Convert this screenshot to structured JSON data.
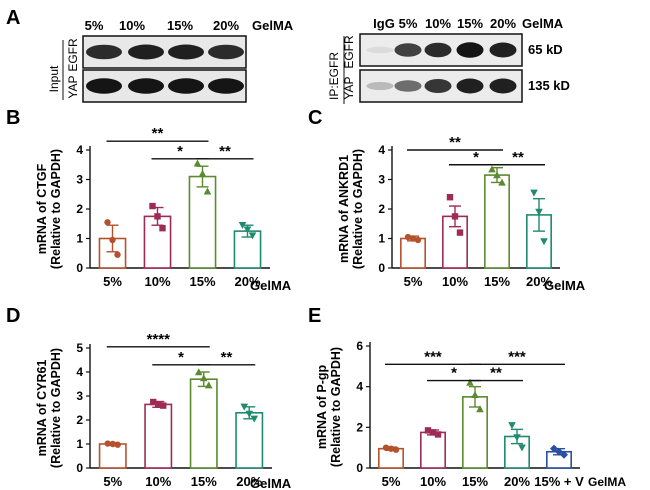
{
  "panel_a": {
    "letter": "A",
    "left_blot": {
      "lanes": [
        "5%",
        "10%",
        "15%",
        "20%"
      ],
      "lane_axis_label": "GelMA",
      "group_label": "Input",
      "rows": [
        {
          "label": "EGFR",
          "band_intensities": [
            0.85,
            0.9,
            0.9,
            0.85
          ]
        },
        {
          "label": "YAP",
          "band_intensities": [
            0.95,
            0.95,
            0.95,
            0.95
          ]
        }
      ]
    },
    "right_blot": {
      "lanes": [
        "IgG",
        "5%",
        "10%",
        "15%",
        "20%"
      ],
      "lane_axis_label": "GelMA",
      "group_label": "IP:EGFR",
      "rows": [
        {
          "label": "EGFR",
          "size": "65 kD",
          "band_intensities": [
            0.05,
            0.75,
            0.85,
            0.95,
            0.9
          ]
        },
        {
          "label": "YAP",
          "size": "135 kD",
          "band_intensities": [
            0.2,
            0.55,
            0.8,
            0.9,
            0.9
          ]
        }
      ]
    }
  },
  "chart_data": [
    {
      "panel": "B",
      "type": "bar",
      "ylabel_line1": "mRNA of CTGF",
      "ylabel_line2": "(Relative to GAPDH)",
      "xlabel": "GelMA",
      "categories": [
        "5%",
        "10%",
        "15%",
        "20%"
      ],
      "values": [
        1.0,
        1.75,
        3.1,
        1.25
      ],
      "errors": [
        0.45,
        0.3,
        0.35,
        0.2
      ],
      "points": [
        [
          1.55,
          0.95,
          0.45
        ],
        [
          2.1,
          1.75,
          1.35
        ],
        [
          3.55,
          3.2,
          2.6
        ],
        [
          1.45,
          1.3,
          1.1
        ]
      ],
      "colors": [
        "#b5522d",
        "#9e2b56",
        "#5b8a2f",
        "#1f8a70"
      ],
      "markers": [
        "circle",
        "square",
        "triangle",
        "triangle-down"
      ],
      "ylim": [
        0,
        4
      ],
      "yticks": [
        0,
        1,
        2,
        3,
        4
      ],
      "significance": [
        {
          "from": 0,
          "to": 2,
          "label": "**",
          "y": 4.3
        },
        {
          "from": 1,
          "to": 2,
          "label": "*",
          "y": 3.7
        },
        {
          "from": 2,
          "to": 3,
          "label": "**",
          "y": 3.7
        }
      ]
    },
    {
      "panel": "C",
      "type": "bar",
      "ylabel_line1": "mRNA of ANKRD1",
      "ylabel_line2": "(Relative to GAPDH)",
      "xlabel": "GelMA",
      "categories": [
        "5%",
        "10%",
        "15%",
        "20%"
      ],
      "values": [
        1.0,
        1.75,
        3.15,
        1.8
      ],
      "errors": [
        0.08,
        0.35,
        0.25,
        0.55
      ],
      "points": [
        [
          1.05,
          1.0,
          0.95
        ],
        [
          2.4,
          1.75,
          1.2
        ],
        [
          3.35,
          3.15,
          2.9
        ],
        [
          2.55,
          1.9,
          0.9
        ]
      ],
      "colors": [
        "#b5522d",
        "#9e2b56",
        "#5b8a2f",
        "#1f8a70"
      ],
      "markers": [
        "circle",
        "square",
        "triangle",
        "triangle-down"
      ],
      "ylim": [
        0,
        4
      ],
      "yticks": [
        0,
        1,
        2,
        3,
        4
      ],
      "significance": [
        {
          "from": 0,
          "to": 2,
          "label": "**",
          "y": 4.0
        },
        {
          "from": 1,
          "to": 2,
          "label": "*",
          "y": 3.5
        },
        {
          "from": 2,
          "to": 3,
          "label": "**",
          "y": 3.5
        }
      ]
    },
    {
      "panel": "D",
      "type": "bar",
      "ylabel_line1": "mRNA of CYR61",
      "ylabel_line2": "(Relative to GAPDH)",
      "xlabel": "GelMA",
      "categories": [
        "5%",
        "10%",
        "15%",
        "20%"
      ],
      "values": [
        1.0,
        2.65,
        3.7,
        2.3
      ],
      "errors": [
        0.05,
        0.12,
        0.3,
        0.25
      ],
      "points": [
        [
          1.02,
          1.0,
          0.97
        ],
        [
          2.75,
          2.65,
          2.6
        ],
        [
          4.0,
          3.75,
          3.45
        ],
        [
          2.55,
          2.25,
          2.05
        ]
      ],
      "colors": [
        "#b5522d",
        "#9e2b56",
        "#5b8a2f",
        "#1f8a70"
      ],
      "markers": [
        "circle",
        "square",
        "triangle",
        "triangle-down"
      ],
      "ylim": [
        0,
        5
      ],
      "yticks": [
        0,
        1,
        2,
        3,
        4,
        5
      ],
      "significance": [
        {
          "from": 0,
          "to": 2,
          "label": "****",
          "y": 5.05
        },
        {
          "from": 1,
          "to": 2,
          "label": "*",
          "y": 4.3
        },
        {
          "from": 2,
          "to": 3,
          "label": "**",
          "y": 4.3
        }
      ]
    },
    {
      "panel": "E",
      "type": "bar",
      "ylabel_line1": "mRNA of P-gp",
      "ylabel_line2": "(Relative to GAPDH)",
      "xlabel": "GelMA",
      "categories": [
        "5%",
        "10%",
        "15%",
        "20%",
        "15% + V"
      ],
      "values": [
        0.95,
        1.75,
        3.5,
        1.55,
        0.8
      ],
      "errors": [
        0.08,
        0.12,
        0.5,
        0.35,
        0.15
      ],
      "points": [
        [
          1.0,
          0.95,
          0.9
        ],
        [
          1.85,
          1.75,
          1.65
        ],
        [
          4.2,
          3.6,
          2.9
        ],
        [
          2.1,
          1.5,
          1.0
        ],
        [
          0.95,
          0.8,
          0.65
        ]
      ],
      "colors": [
        "#b5522d",
        "#9e2b56",
        "#5b8a2f",
        "#1f8a70",
        "#2a4f9e"
      ],
      "markers": [
        "circle",
        "square",
        "triangle",
        "triangle-down",
        "diamond"
      ],
      "ylim": [
        0,
        6
      ],
      "yticks": [
        0,
        2,
        4,
        6
      ],
      "significance": [
        {
          "from": 0,
          "to": 2,
          "label": "***",
          "y": 5.1
        },
        {
          "from": 2,
          "to": 4,
          "label": "***",
          "y": 5.1
        },
        {
          "from": 1,
          "to": 2,
          "label": "*",
          "y": 4.3
        },
        {
          "from": 2,
          "to": 3,
          "label": "**",
          "y": 4.3
        }
      ]
    }
  ]
}
